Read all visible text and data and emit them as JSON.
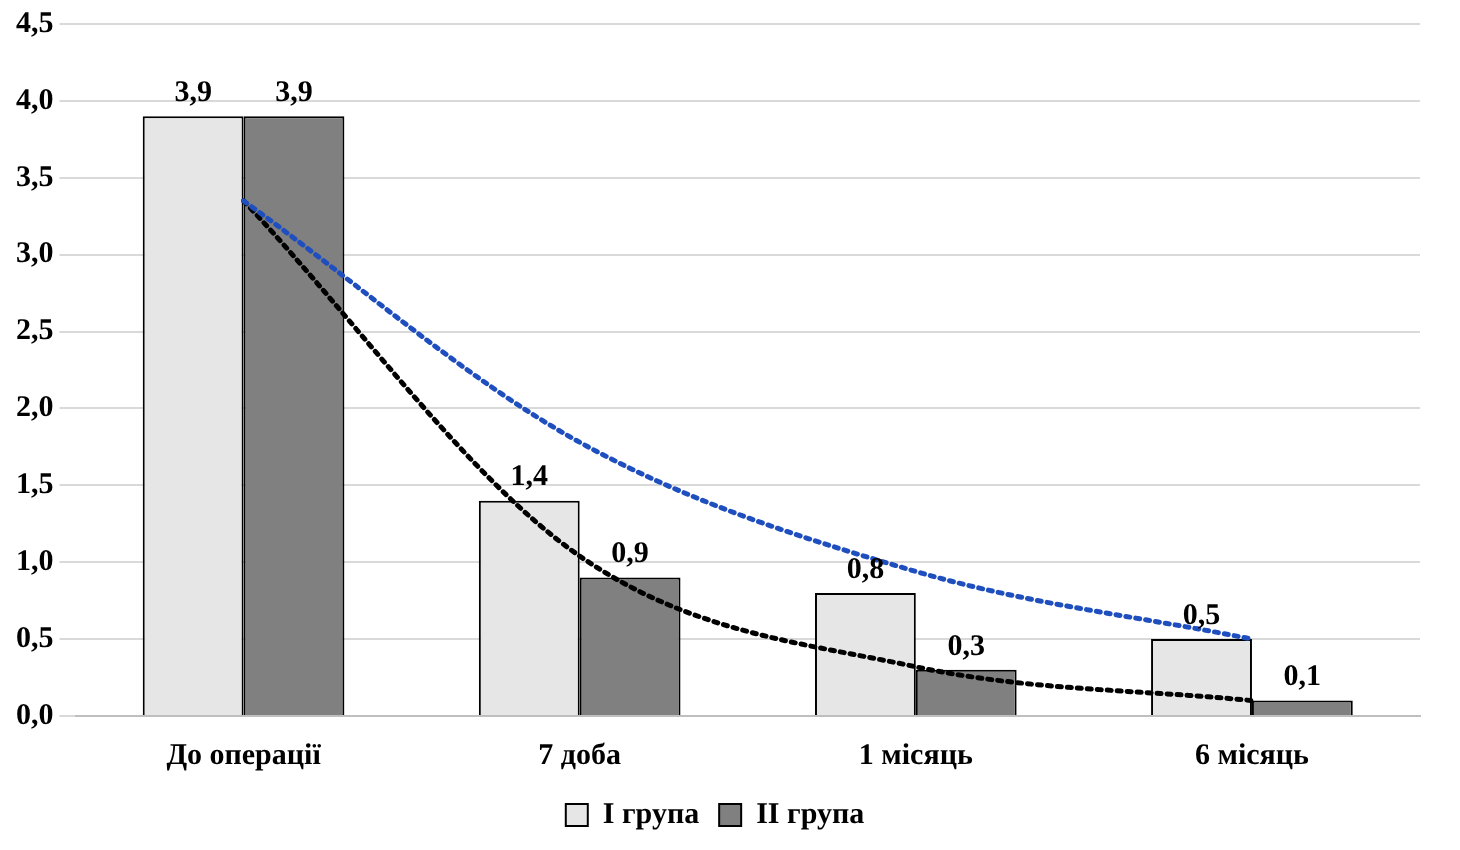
{
  "chart_data": {
    "type": "bar",
    "categories": [
      "До операції",
      "7 доба",
      "1 місяць",
      "6 місяць"
    ],
    "series": [
      {
        "name": "I група",
        "color": "#e6e6e6",
        "values": [
          3.9,
          1.4,
          0.8,
          0.5
        ],
        "value_labels": [
          "3,9",
          "1,4",
          "0,8",
          "0,5"
        ]
      },
      {
        "name": "II група",
        "color": "#808080",
        "values": [
          3.9,
          0.9,
          0.3,
          0.1
        ],
        "value_labels": [
          "3,9",
          "0,9",
          "0,3",
          "0,1"
        ]
      },
      {
        "type": "line",
        "color": "#1f4fbf",
        "x": [
          "До операції",
          "7 доба",
          "1 місяць",
          "6 місяць"
        ],
        "values": [
          3.35,
          1.78,
          0.94,
          0.5
        ],
        "line_style": "dotted",
        "marker": "none"
      },
      {
        "type": "line",
        "color": "#000000",
        "x": [
          "До операції",
          "7 доба",
          "1 місяць",
          "6 місяць"
        ],
        "values": [
          3.35,
          1.04,
          0.32,
          0.1
        ],
        "line_style": "dotted",
        "marker": "none"
      }
    ],
    "ylim": [
      0,
      4.5
    ],
    "yticks": [
      {
        "value": 0,
        "label": "0,0"
      },
      {
        "value": 0.5,
        "label": "0,5"
      },
      {
        "value": 1,
        "label": "1,0"
      },
      {
        "value": 1.5,
        "label": "1,5"
      },
      {
        "value": 2,
        "label": "2,0"
      },
      {
        "value": 2.5,
        "label": "2,5"
      },
      {
        "value": 3,
        "label": "3,0"
      },
      {
        "value": 3.5,
        "label": "3,5"
      },
      {
        "value": 4,
        "label": "4,0"
      },
      {
        "value": 4.5,
        "label": "4,5"
      }
    ],
    "grid": "y",
    "legend": "bottom"
  }
}
